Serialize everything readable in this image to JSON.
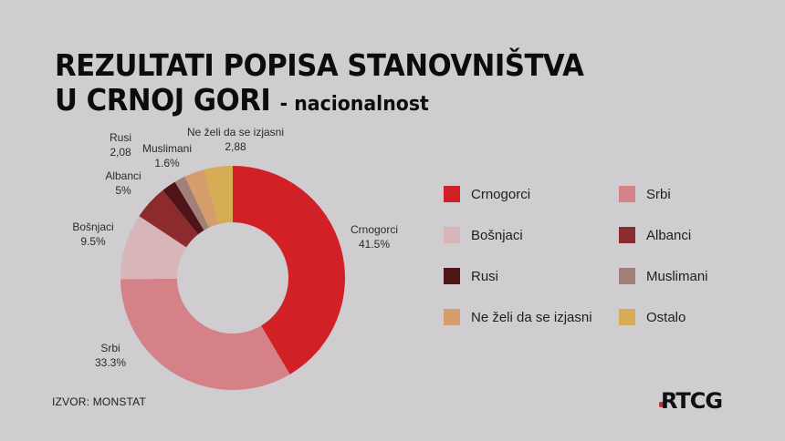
{
  "title": {
    "line1": "REZULTATI POPISA STANOVNIŠTVA",
    "line2": "U CRNOJ GORI",
    "subtitle": "- nacionalnost"
  },
  "labels": {
    "crnogorci": {
      "name": "Crnogorci",
      "value": "41.5%"
    },
    "srbi": {
      "name": "Srbi",
      "value": "33.3%"
    },
    "bosnjaci": {
      "name": "Bošnjaci",
      "value": "9.5%"
    },
    "albanci": {
      "name": "Albanci",
      "value": "5%"
    },
    "rusi": {
      "name": "Rusi",
      "value": "2,08"
    },
    "muslimani": {
      "name": "Muslimani",
      "value": "1.6%"
    },
    "ne_zeli": {
      "name": "Ne želi da se izjasni",
      "value": "2,88"
    }
  },
  "legend": {
    "items": [
      {
        "label": "Crnogorci",
        "color": "#d12127"
      },
      {
        "label": "Srbi",
        "color": "#d48287"
      },
      {
        "label": "Bošnjaci",
        "color": "#d8b5b8"
      },
      {
        "label": "Albanci",
        "color": "#8c2a2e"
      },
      {
        "label": "Rusi",
        "color": "#4e1417"
      },
      {
        "label": "Muslimani",
        "color": "#a08077"
      },
      {
        "label": "Ne želi da se izjasni",
        "color": "#d59d6c"
      },
      {
        "label": "Ostalo",
        "color": "#d6ac55"
      }
    ]
  },
  "footer": {
    "source": "IZVOR: MONSTAT",
    "logo": "RTCG"
  },
  "chart_data": {
    "type": "pie",
    "subtype": "donut",
    "title": "REZULTATI POPISA STANOVNIŠTVA U CRNOJ GORI - nacionalnost",
    "categories": [
      "Crnogorci",
      "Srbi",
      "Bošnjaci",
      "Albanci",
      "Rusi",
      "Muslimani",
      "Ne želi da se izjasni",
      "Ostalo"
    ],
    "values": [
      41.5,
      33.3,
      9.5,
      5.0,
      2.08,
      1.6,
      2.88,
      4.14
    ],
    "value_labels": [
      "41.5%",
      "33.3%",
      "9.5%",
      "5%",
      "2,08",
      "1.6%",
      "2,88",
      ""
    ],
    "colors": [
      "#d12127",
      "#d48287",
      "#d8b5b8",
      "#8c2a2e",
      "#4e1417",
      "#a08077",
      "#d59d6c",
      "#d6ac55"
    ],
    "unit": "%",
    "start_angle": "top (12 o'clock), counter-clockwise order listed from Crnogorci clockwise",
    "legend_position": "right, 2 columns",
    "source": "IZVOR: MONSTAT"
  }
}
